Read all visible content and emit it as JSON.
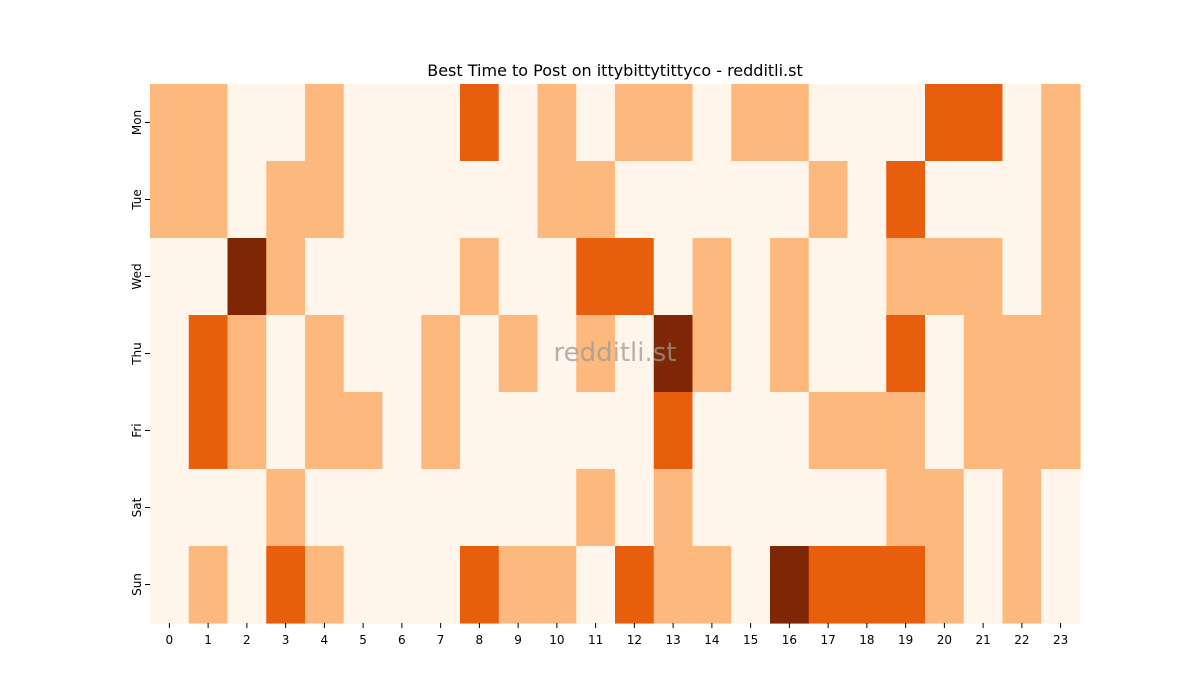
{
  "chart_data": {
    "type": "heatmap",
    "title": "Best Time to Post on ittybittytittyco - redditli.st",
    "watermark": "redditli.st",
    "xlabel": "",
    "ylabel": "",
    "x_categories": [
      "0",
      "1",
      "2",
      "3",
      "4",
      "5",
      "6",
      "7",
      "8",
      "9",
      "10",
      "11",
      "12",
      "13",
      "14",
      "15",
      "16",
      "17",
      "18",
      "19",
      "20",
      "21",
      "22",
      "23"
    ],
    "y_categories": [
      "Mon",
      "Tue",
      "Wed",
      "Thu",
      "Fri",
      "Sat",
      "Sun"
    ],
    "value_range": [
      0,
      3
    ],
    "colormap": [
      "#fff5eb",
      "#fdb97d",
      "#e95e0d",
      "#7f2704"
    ],
    "grid": false,
    "values": [
      [
        1,
        1,
        0,
        0,
        1,
        0,
        0,
        0,
        2,
        0,
        1,
        0,
        1,
        1,
        0,
        1,
        1,
        0,
        0,
        0,
        2,
        2,
        0,
        1
      ],
      [
        1,
        1,
        0,
        1,
        1,
        0,
        0,
        0,
        0,
        0,
        1,
        1,
        0,
        0,
        0,
        0,
        0,
        1,
        0,
        2,
        0,
        0,
        0,
        1
      ],
      [
        0,
        0,
        3,
        1,
        0,
        0,
        0,
        0,
        1,
        0,
        0,
        2,
        2,
        0,
        1,
        0,
        1,
        0,
        0,
        1,
        1,
        1,
        0,
        1
      ],
      [
        0,
        2,
        1,
        0,
        1,
        0,
        0,
        1,
        0,
        1,
        0,
        1,
        0,
        3,
        1,
        0,
        1,
        0,
        0,
        2,
        0,
        1,
        1,
        1
      ],
      [
        0,
        2,
        1,
        0,
        1,
        1,
        0,
        1,
        0,
        0,
        0,
        0,
        0,
        2,
        0,
        0,
        0,
        1,
        1,
        1,
        0,
        1,
        1,
        1
      ],
      [
        0,
        0,
        0,
        1,
        0,
        0,
        0,
        0,
        0,
        0,
        0,
        1,
        0,
        1,
        0,
        0,
        0,
        0,
        0,
        1,
        1,
        0,
        1,
        0
      ],
      [
        0,
        1,
        0,
        2,
        1,
        0,
        0,
        0,
        2,
        1,
        1,
        0,
        2,
        1,
        1,
        0,
        3,
        2,
        2,
        2,
        1,
        0,
        1,
        0
      ]
    ]
  }
}
